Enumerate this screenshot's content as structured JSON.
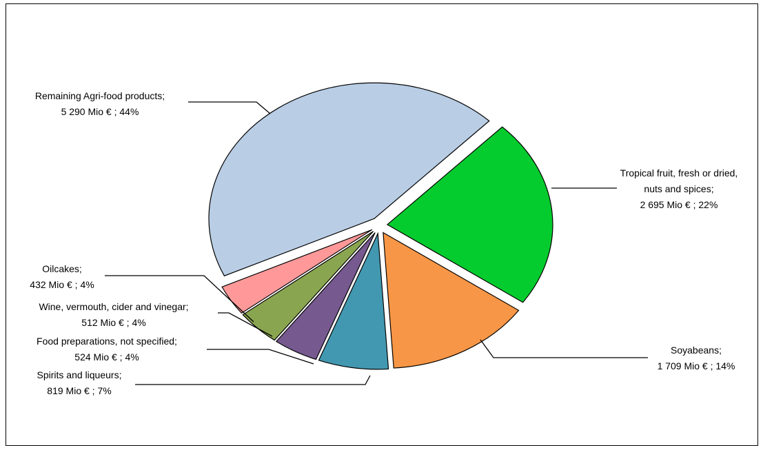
{
  "chart_data": {
    "type": "pie",
    "categories": [
      "Tropical fruit, fresh or dried, nuts and spices;",
      "Soyabeans;",
      "Spirits and liqueurs;",
      "Food preparations, not specified;",
      "Wine, vermouth, cider and vinegar;",
      "Oilcakes;",
      "Remaining Agri-food products;"
    ],
    "values": [
      2695,
      1709,
      819,
      524,
      512,
      432,
      5290
    ],
    "value_labels": [
      "2 695 Mio € ; 22%",
      "1 709 Mio € ; 14%",
      "819 Mio € ; 7%",
      "524 Mio € ; 4%",
      "512 Mio € ; 4%",
      "432 Mio € ; 4%",
      "5 290 Mio € ; 44%"
    ],
    "colors": [
      "#05cc2e",
      "#f79646",
      "#4298b0",
      "#76598f",
      "#8aa550",
      "#ff9999",
      "#b9cde5"
    ]
  }
}
